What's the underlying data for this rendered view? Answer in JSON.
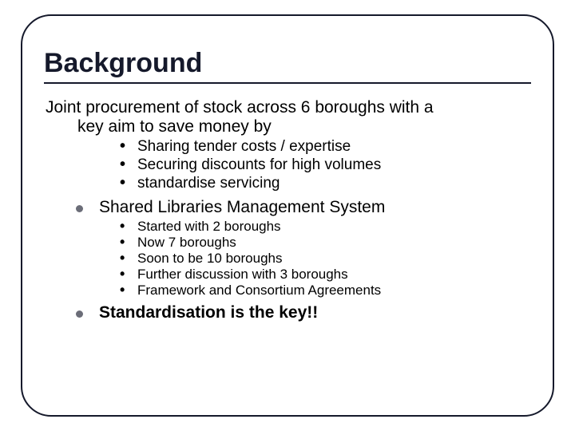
{
  "title": "Background",
  "intro_line1": "Joint procurement of stock across 6 boroughs with a",
  "intro_line2": "key aim to save money by",
  "sub_a": [
    "Sharing tender costs / expertise",
    "Securing discounts for high volumes",
    "standardise servicing"
  ],
  "main1": "Shared Libraries Management System",
  "sub_b": [
    "Started with 2 boroughs",
    "Now 7 boroughs",
    "Soon to be 10 boroughs",
    "Further discussion with 3 boroughs",
    "Framework and Consortium Agreements"
  ],
  "main2": "Standardisation is the key!!",
  "colors": {
    "frame": "#15192b",
    "round_bullet": "#6b6d78",
    "text": "#000000",
    "background": "#ffffff"
  },
  "fonts": {
    "title_size": 34,
    "intro_size": 21,
    "sub_a_size": 19,
    "main_size": 21,
    "sub_b_size": 17
  }
}
